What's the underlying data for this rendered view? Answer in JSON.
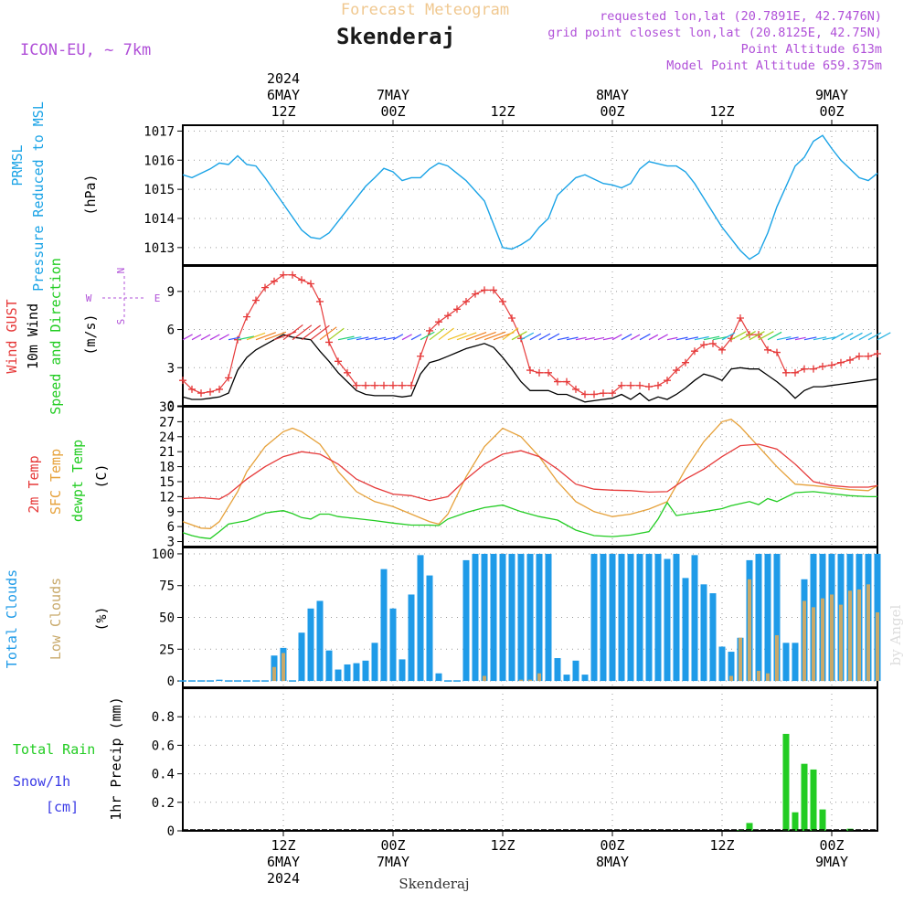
{
  "header": {
    "super_title": "Forecast Meteogram",
    "title": "Skenderaj",
    "model": "ICON-EU, ~ 7km",
    "requested": "requested lon,lat (20.7891E, 42.7476N)",
    "grid_point": "grid point closest lon,lat (20.8125E, 42.75N)",
    "point_altitude": "Point Altitude 613m",
    "model_altitude": "Model Point Altitude 659.375m",
    "footer": "Skenderaj",
    "watermark": "by Angel"
  },
  "time_axis": {
    "ticks": [
      {
        "hour": 12,
        "label": "12Z",
        "day": "6MAY",
        "year": "2024"
      },
      {
        "hour": 24,
        "label": "00Z",
        "day": "7MAY",
        "year": ""
      },
      {
        "hour": 36,
        "label": "12Z",
        "day": "",
        "year": ""
      },
      {
        "hour": 48,
        "label": "00Z",
        "day": "8MAY",
        "year": ""
      },
      {
        "hour": 60,
        "label": "12Z",
        "day": "",
        "year": ""
      },
      {
        "hour": 72,
        "label": "00Z",
        "day": "9MAY",
        "year": ""
      }
    ],
    "range_hours": [
      1,
      77
    ]
  },
  "colors": {
    "pressure": "#1aa3e6",
    "gust": "#e63a3a",
    "wind10m": "#000000",
    "temp2m": "#e63a3a",
    "sfc_temp": "#e6a13a",
    "dewpt": "#22cc22",
    "total_clouds": "#1f9be8",
    "low_clouds": "#c8a96a",
    "rain": "#22cc22",
    "snow": "#3a3ae6",
    "purple": "#b050d8",
    "supertitle": "#f0c890"
  },
  "chart_data": [
    {
      "type": "line",
      "title": "",
      "ylabel_lines": [
        "PRMSL",
        "Pressure Reduced to MSL"
      ],
      "unit": "(hPa)",
      "ylim": [
        1012.4,
        1017.2
      ],
      "yticks": [
        1013,
        1014,
        1015,
        1016,
        1017
      ],
      "series": [
        {
          "name": "PRMSL",
          "x": [
            1,
            2,
            4,
            5,
            6,
            7,
            8,
            9,
            10,
            12,
            14,
            15,
            16,
            17,
            19,
            21,
            22,
            23,
            24,
            25,
            26,
            27,
            28,
            29,
            30,
            32,
            34,
            36,
            37,
            38,
            39,
            40,
            41,
            42,
            44,
            45,
            46,
            47,
            48,
            49,
            50,
            51,
            52,
            54,
            55,
            56,
            57,
            58,
            59,
            60,
            61,
            62,
            63,
            64,
            65,
            66,
            68,
            69,
            70,
            71,
            72,
            73,
            74,
            75,
            76,
            77
          ],
          "y": [
            1015.5,
            1015.4,
            1015.7,
            1015.9,
            1015.85,
            1016.15,
            1015.85,
            1015.8,
            1015.4,
            1014.5,
            1013.6,
            1013.35,
            1013.3,
            1013.5,
            1014.3,
            1015.1,
            1015.4,
            1015.72,
            1015.6,
            1015.3,
            1015.4,
            1015.4,
            1015.7,
            1015.9,
            1015.8,
            1015.3,
            1014.6,
            1013.0,
            1012.95,
            1013.1,
            1013.3,
            1013.7,
            1014.0,
            1014.8,
            1015.4,
            1015.5,
            1015.35,
            1015.2,
            1015.15,
            1015.05,
            1015.2,
            1015.7,
            1015.95,
            1015.8,
            1015.8,
            1015.6,
            1015.2,
            1014.7,
            1014.2,
            1013.7,
            1013.3,
            1012.9,
            1012.6,
            1012.8,
            1013.5,
            1014.4,
            1015.8,
            1016.1,
            1016.65,
            1016.85,
            1016.4,
            1016.0,
            1015.7,
            1015.4,
            1015.3,
            1015.55
          ]
        }
      ]
    },
    {
      "type": "line",
      "title": "",
      "ylabel_lines": [
        "Wind GUST",
        "10m Wind",
        "Speed and Direction"
      ],
      "unit": "(m/s)",
      "compass": [
        "N",
        "W",
        "E",
        "S"
      ],
      "ylim": [
        0,
        11
      ],
      "yticks": [
        0,
        3,
        6,
        9
      ],
      "series": [
        {
          "name": "Wind GUST",
          "x": [
            1,
            2,
            3,
            4,
            5,
            6,
            7,
            8,
            9,
            10,
            11,
            12,
            13,
            14,
            15,
            16,
            17,
            18,
            19,
            20,
            21,
            22,
            23,
            24,
            25,
            26,
            27,
            28,
            29,
            30,
            31,
            32,
            33,
            34,
            35,
            36,
            37,
            38,
            39,
            40,
            41,
            42,
            43,
            44,
            45,
            46,
            47,
            48,
            49,
            50,
            51,
            52,
            53,
            54,
            55,
            56,
            57,
            58,
            59,
            60,
            61,
            62,
            63,
            64,
            65,
            66,
            67,
            68,
            69,
            70,
            71,
            72,
            73,
            74,
            75,
            76,
            77
          ],
          "y": [
            2.0,
            1.3,
            1.0,
            1.1,
            1.3,
            2.2,
            5.2,
            7.0,
            8.3,
            9.3,
            9.8,
            10.3,
            10.3,
            9.9,
            9.6,
            8.2,
            5.0,
            3.5,
            2.6,
            1.6,
            1.6,
            1.6,
            1.6,
            1.6,
            1.6,
            1.6,
            3.9,
            5.9,
            6.6,
            7.1,
            7.6,
            8.2,
            8.8,
            9.1,
            9.1,
            8.2,
            6.9,
            5.3,
            2.8,
            2.6,
            2.6,
            1.9,
            1.9,
            1.3,
            0.9,
            0.9,
            1.0,
            1.0,
            1.6,
            1.6,
            1.6,
            1.5,
            1.6,
            2.0,
            2.8,
            3.4,
            4.3,
            4.8,
            4.9,
            4.4,
            5.3,
            6.9,
            5.6,
            5.6,
            4.4,
            4.2,
            2.6,
            2.6,
            2.9,
            2.9,
            3.1,
            3.2,
            3.4,
            3.6,
            3.9,
            3.9,
            4.1
          ]
        },
        {
          "name": "10m Wind",
          "x": [
            1,
            2,
            3,
            4,
            5,
            6,
            7,
            8,
            9,
            10,
            11,
            12,
            13,
            14,
            15,
            16,
            17,
            18,
            19,
            20,
            21,
            22,
            23,
            24,
            25,
            26,
            27,
            28,
            29,
            30,
            31,
            32,
            33,
            34,
            35,
            36,
            37,
            38,
            39,
            40,
            41,
            42,
            43,
            44,
            45,
            46,
            47,
            48,
            49,
            50,
            51,
            52,
            53,
            54,
            55,
            56,
            57,
            58,
            59,
            60,
            61,
            62,
            63,
            64,
            65,
            66,
            67,
            68,
            69,
            70,
            71,
            72,
            73,
            74,
            75,
            76,
            77
          ],
          "y": [
            0.7,
            0.5,
            0.5,
            0.6,
            0.7,
            1.0,
            2.8,
            3.8,
            4.4,
            4.8,
            5.2,
            5.6,
            5.4,
            5.3,
            5.2,
            4.3,
            3.5,
            2.6,
            1.9,
            1.2,
            0.9,
            0.8,
            0.8,
            0.8,
            0.7,
            0.8,
            2.5,
            3.4,
            3.6,
            3.9,
            4.2,
            4.5,
            4.7,
            4.9,
            4.6,
            3.8,
            2.9,
            1.9,
            1.2,
            1.2,
            1.2,
            0.9,
            0.9,
            0.6,
            0.3,
            0.4,
            0.5,
            0.6,
            0.9,
            0.5,
            1.0,
            0.4,
            0.7,
            0.5,
            0.9,
            1.4,
            2.0,
            2.5,
            2.3,
            2.0,
            2.9,
            3.0,
            2.9,
            2.9,
            2.4,
            1.9,
            1.3,
            0.6,
            1.2,
            1.5,
            1.5,
            1.6,
            1.7,
            1.8,
            1.9,
            2.0,
            2.1
          ]
        }
      ]
    },
    {
      "type": "line",
      "title": "",
      "ylabel_lines": [
        "2m Temp",
        "SFC Temp",
        "dewpt Temp"
      ],
      "unit": "(C)",
      "ylim": [
        2,
        30
      ],
      "yticks": [
        3,
        6,
        9,
        12,
        15,
        18,
        21,
        24,
        27,
        30
      ],
      "series": [
        {
          "name": "2m Temp",
          "x": [
            1,
            3,
            5,
            6,
            8,
            10,
            12,
            14,
            16,
            18,
            20,
            22,
            24,
            26,
            28,
            30,
            32,
            34,
            36,
            38,
            40,
            42,
            44,
            46,
            48,
            50,
            52,
            54,
            56,
            58,
            60,
            62,
            64,
            66,
            68,
            70,
            72,
            74,
            76,
            77
          ],
          "y": [
            11.6,
            11.8,
            11.5,
            12.5,
            15.5,
            18.0,
            20.0,
            21.0,
            20.5,
            18.5,
            15.5,
            13.8,
            12.5,
            12.2,
            11.2,
            12.0,
            15.5,
            18.5,
            20.5,
            21.2,
            20.0,
            17.5,
            14.5,
            13.5,
            13.3,
            13.2,
            12.9,
            13.0,
            15.5,
            17.5,
            20.0,
            22.2,
            22.5,
            21.5,
            18.5,
            15.0,
            14.2,
            13.9,
            13.9,
            14.2
          ]
        },
        {
          "name": "SFC Temp",
          "x": [
            1,
            3,
            4,
            5,
            7,
            8,
            10,
            12,
            13,
            14,
            16,
            17,
            18,
            20,
            22,
            24,
            26,
            28,
            29,
            30,
            32,
            34,
            36,
            38,
            40,
            42,
            44,
            46,
            48,
            50,
            52,
            54,
            56,
            58,
            60,
            61,
            62,
            64,
            66,
            68,
            70,
            72,
            74,
            76,
            77
          ],
          "y": [
            7.0,
            5.7,
            5.6,
            7.0,
            13.0,
            17.0,
            22.0,
            25.0,
            25.7,
            25.0,
            22.5,
            20.0,
            17.0,
            13.0,
            11.0,
            10.0,
            8.5,
            7.0,
            6.5,
            8.5,
            16.0,
            22.0,
            25.7,
            24.0,
            20.0,
            15.0,
            11.0,
            9.0,
            8.0,
            8.5,
            9.5,
            11.0,
            17.5,
            23.0,
            27.0,
            27.5,
            26.0,
            22.0,
            18.0,
            14.5,
            14.2,
            13.8,
            13.4,
            13.2,
            14.2
          ]
        },
        {
          "name": "dewpt Temp",
          "x": [
            1,
            2,
            3,
            4,
            5,
            6,
            8,
            10,
            11,
            12,
            13,
            14,
            15,
            16,
            17,
            18,
            20,
            22,
            24,
            26,
            28,
            29,
            30,
            32,
            34,
            36,
            38,
            40,
            42,
            44,
            46,
            48,
            50,
            52,
            53,
            54,
            55,
            56,
            58,
            60,
            61,
            62,
            63,
            64,
            65,
            66,
            68,
            70,
            72,
            74,
            76,
            77
          ],
          "y": [
            4.8,
            4.2,
            3.8,
            3.6,
            5.0,
            6.5,
            7.2,
            8.7,
            9.0,
            9.2,
            8.6,
            7.8,
            7.5,
            8.5,
            8.5,
            8.0,
            7.6,
            7.2,
            6.7,
            6.3,
            6.3,
            6.2,
            7.5,
            8.8,
            9.8,
            10.3,
            9.0,
            8.0,
            7.3,
            5.3,
            4.2,
            4.0,
            4.3,
            5.0,
            7.5,
            10.8,
            8.2,
            8.5,
            9.0,
            9.6,
            10.2,
            10.6,
            11.0,
            10.4,
            11.6,
            11.0,
            12.8,
            13.0,
            12.6,
            12.2,
            12.0,
            12.0
          ]
        }
      ]
    },
    {
      "type": "bar",
      "title": "",
      "ylabel_lines": [
        "Total Clouds",
        "Low Clouds"
      ],
      "unit": "(%)",
      "ylim": [
        -5,
        105
      ],
      "yticks": [
        0,
        25,
        50,
        75,
        100
      ],
      "x": [
        1,
        2,
        3,
        4,
        5,
        6,
        7,
        8,
        9,
        10,
        11,
        12,
        13,
        14,
        15,
        16,
        17,
        18,
        19,
        20,
        21,
        22,
        23,
        24,
        25,
        26,
        27,
        28,
        29,
        30,
        31,
        32,
        33,
        34,
        35,
        36,
        37,
        38,
        39,
        40,
        41,
        42,
        43,
        44,
        45,
        46,
        47,
        48,
        49,
        50,
        51,
        52,
        53,
        54,
        55,
        56,
        57,
        58,
        59,
        60,
        61,
        62,
        63,
        64,
        65,
        66,
        67,
        68,
        69,
        70,
        71,
        72,
        73,
        74,
        75,
        76,
        77
      ],
      "series": [
        {
          "name": "Total Clouds",
          "values": [
            0,
            0,
            0,
            0,
            1,
            0,
            0,
            0,
            0,
            0,
            20,
            26,
            0,
            38,
            57,
            63,
            24,
            9,
            13,
            14,
            16,
            30,
            88,
            57,
            17,
            68,
            99,
            83,
            6,
            0,
            0,
            95,
            100,
            100,
            100,
            100,
            100,
            100,
            100,
            100,
            100,
            18,
            5,
            16,
            5,
            100,
            100,
            100,
            100,
            100,
            100,
            100,
            100,
            96,
            100,
            81,
            99,
            76,
            69,
            27,
            23,
            34,
            95,
            100,
            100,
            100,
            30,
            30,
            80,
            100,
            100,
            100,
            100,
            100,
            100,
            100,
            100
          ]
        },
        {
          "name": "Low Clouds",
          "values": [
            0,
            0,
            0,
            0,
            0,
            0,
            0,
            0,
            0,
            0,
            11,
            22,
            0,
            0,
            0,
            0,
            0,
            0,
            0,
            0,
            0,
            0,
            0,
            0,
            0,
            0,
            0,
            0,
            0,
            0,
            0,
            0,
            0,
            4,
            0,
            0,
            0,
            1,
            1,
            6,
            0,
            0,
            0,
            0,
            0,
            0,
            0,
            0,
            0,
            0,
            0,
            0,
            0,
            0,
            0,
            0,
            0,
            0,
            0,
            0,
            4,
            34,
            80,
            8,
            6,
            36,
            0,
            0,
            63,
            58,
            65,
            68,
            60,
            71,
            72,
            76,
            54
          ]
        }
      ]
    },
    {
      "type": "bar",
      "title": "",
      "ylabel": "1hr Precip (mm)",
      "legend_labels": [
        "Total  Rain",
        "Snow/1h",
        "[cm]"
      ],
      "ylim": [
        0,
        1.0
      ],
      "yticks": [
        0,
        0.2,
        0.4,
        0.6,
        0.8
      ],
      "x": [
        62,
        63,
        67,
        68,
        69,
        70,
        71,
        74
      ],
      "series": [
        {
          "name": "Total Rain",
          "values": [
            0.005,
            0.055,
            0.68,
            0.13,
            0.47,
            0.43,
            0.15,
            0.015
          ]
        }
      ]
    }
  ]
}
